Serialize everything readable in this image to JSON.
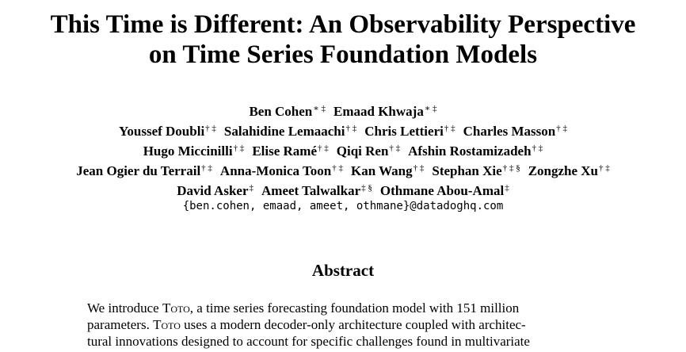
{
  "paper": {
    "title_line1": "This Time is Different: An Observability Perspective",
    "title_line2": "on Time Series Foundation Models",
    "authors": [
      [
        {
          "name": "Ben Cohen",
          "marks": "∗ ‡"
        },
        {
          "name": "Emaad Khwaja",
          "marks": "∗ ‡"
        }
      ],
      [
        {
          "name": "Youssef Doubli",
          "marks": "† ‡"
        },
        {
          "name": "Salahidine Lemaachi",
          "marks": "† ‡"
        },
        {
          "name": "Chris Lettieri",
          "marks": "† ‡"
        },
        {
          "name": "Charles Masson",
          "marks": "† ‡"
        }
      ],
      [
        {
          "name": "Hugo Miccinilli",
          "marks": "† ‡"
        },
        {
          "name": "Elise Ramé",
          "marks": "† ‡"
        },
        {
          "name": "Qiqi Ren",
          "marks": "† ‡"
        },
        {
          "name": "Afshin Rostamizadeh",
          "marks": "† ‡"
        }
      ],
      [
        {
          "name": "Jean Ogier du Terrail",
          "marks": "† ‡"
        },
        {
          "name": "Anna-Monica Toon",
          "marks": "† ‡"
        },
        {
          "name": "Kan Wang",
          "marks": "† ‡"
        },
        {
          "name": "Stephan Xie",
          "marks": "† ‡ §"
        },
        {
          "name": "Zongzhe Xu",
          "marks": "† ‡"
        }
      ],
      [
        {
          "name": "David Asker",
          "marks": "‡"
        },
        {
          "name": "Ameet Talwalkar",
          "marks": "‡ §"
        },
        {
          "name": "Othmane Abou-Amal",
          "marks": "‡"
        }
      ]
    ],
    "email": "{ben.cohen, emaad, ameet, othmane}@datadoghq.com",
    "abstract_heading": "Abstract",
    "abstract": {
      "line1_pre": "We introduce ",
      "line1_model": "Toto",
      "line1_post": ", a time series forecasting foundation model with 151 million",
      "line2_pre": "parameters. ",
      "line2_model": "Toto",
      "line2_post": " uses a modern decoder-only architecture coupled with architec-",
      "line3": "tural innovations designed to account for specific challenges found in multivariate"
    }
  }
}
